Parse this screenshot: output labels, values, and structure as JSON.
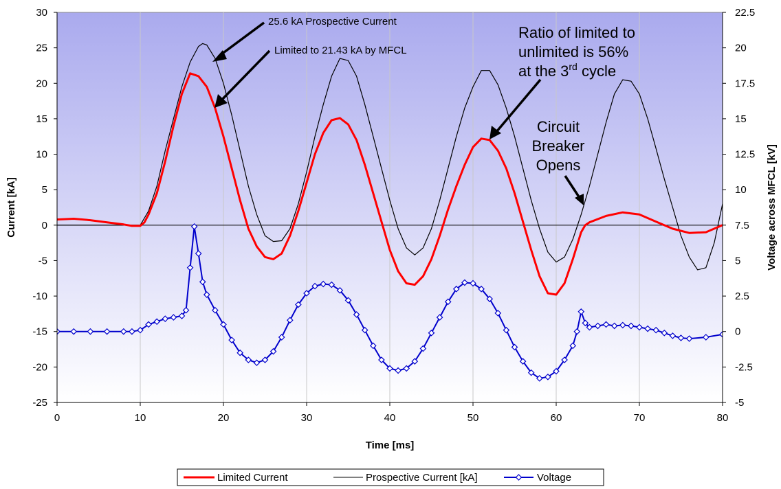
{
  "chart_data": {
    "type": "line",
    "xlabel": "Time [ms]",
    "ylabel": "Current [kA]",
    "y2label": "Voltage across MFCL [kV]",
    "xlim": [
      0,
      80
    ],
    "ylim": [
      -25,
      30
    ],
    "y2lim": [
      -5,
      22.5
    ],
    "xticks": [
      0,
      10,
      20,
      30,
      40,
      50,
      60,
      70,
      80
    ],
    "yticks": [
      -25,
      -20,
      -15,
      -10,
      -5,
      0,
      5,
      10,
      15,
      20,
      25,
      30
    ],
    "y2ticks": [
      -5,
      -2.5,
      0,
      2.5,
      5,
      7.5,
      10,
      12.5,
      15,
      17.5,
      20,
      22.5
    ],
    "y2tick_labels": [
      "-5",
      "-2.5",
      "0",
      "2.5",
      "5",
      "7.5",
      "10",
      "12.5",
      "15",
      "17.5",
      "20",
      "22.5"
    ],
    "grid": "vertical",
    "background_gradient": [
      "#aaaaee",
      "#ffffff"
    ],
    "legend_placement": "bottom",
    "series": [
      {
        "name": "Limited Current",
        "axis": "left",
        "color": "#ff0000",
        "marker": "none",
        "points": [
          [
            0,
            0.8
          ],
          [
            2,
            0.9
          ],
          [
            4,
            0.7
          ],
          [
            6,
            0.4
          ],
          [
            8,
            0.1
          ],
          [
            9,
            -0.1
          ],
          [
            10,
            -0.1
          ],
          [
            10.5,
            0.4
          ],
          [
            11,
            1.5
          ],
          [
            12,
            4.5
          ],
          [
            13,
            9
          ],
          [
            14,
            14
          ],
          [
            15,
            18.5
          ],
          [
            16,
            21.4
          ],
          [
            17,
            21
          ],
          [
            18,
            19.5
          ],
          [
            19,
            16.5
          ],
          [
            20,
            12.5
          ],
          [
            21,
            8
          ],
          [
            22,
            3.5
          ],
          [
            23,
            -0.5
          ],
          [
            24,
            -3
          ],
          [
            25,
            -4.5
          ],
          [
            26,
            -4.8
          ],
          [
            27,
            -4
          ],
          [
            28,
            -1.5
          ],
          [
            29,
            2
          ],
          [
            30,
            6
          ],
          [
            31,
            10
          ],
          [
            32,
            13
          ],
          [
            33,
            14.8
          ],
          [
            34,
            15.1
          ],
          [
            35,
            14.2
          ],
          [
            36,
            12
          ],
          [
            37,
            8.5
          ],
          [
            38,
            4.5
          ],
          [
            39,
            0.5
          ],
          [
            40,
            -3.5
          ],
          [
            41,
            -6.5
          ],
          [
            42,
            -8.2
          ],
          [
            43,
            -8.4
          ],
          [
            44,
            -7.2
          ],
          [
            45,
            -4.8
          ],
          [
            46,
            -1.5
          ],
          [
            47,
            2.2
          ],
          [
            48,
            5.5
          ],
          [
            49,
            8.5
          ],
          [
            50,
            11
          ],
          [
            51,
            12.2
          ],
          [
            52,
            12
          ],
          [
            53,
            10.5
          ],
          [
            54,
            8
          ],
          [
            55,
            4.5
          ],
          [
            56,
            0.5
          ],
          [
            57,
            -3.5
          ],
          [
            58,
            -7.2
          ],
          [
            59,
            -9.6
          ],
          [
            60,
            -9.8
          ],
          [
            61,
            -8.2
          ],
          [
            62,
            -4.8
          ],
          [
            63,
            -1
          ],
          [
            63.5,
            0
          ],
          [
            64,
            0.4
          ],
          [
            66,
            1.3
          ],
          [
            68,
            1.8
          ],
          [
            70,
            1.5
          ],
          [
            72,
            0.5
          ],
          [
            74,
            -0.5
          ],
          [
            76,
            -1.1
          ],
          [
            78,
            -1
          ],
          [
            80,
            0
          ]
        ]
      },
      {
        "name": "Prospective Current [kA]",
        "axis": "left",
        "color": "#000000",
        "marker": "none",
        "points": [
          [
            0,
            0
          ],
          [
            2,
            0
          ],
          [
            4,
            0
          ],
          [
            6,
            0
          ],
          [
            8,
            0
          ],
          [
            10,
            0
          ],
          [
            11,
            2
          ],
          [
            12,
            5.5
          ],
          [
            13,
            10.5
          ],
          [
            14,
            15
          ],
          [
            15,
            19.5
          ],
          [
            16,
            23
          ],
          [
            17,
            25.2
          ],
          [
            17.5,
            25.6
          ],
          [
            18,
            25.4
          ],
          [
            19,
            23.5
          ],
          [
            20,
            20
          ],
          [
            21,
            15.5
          ],
          [
            22,
            10.5
          ],
          [
            23,
            5.5
          ],
          [
            24,
            1.5
          ],
          [
            25,
            -1.5
          ],
          [
            26,
            -2.3
          ],
          [
            27,
            -2.2
          ],
          [
            28,
            -0.5
          ],
          [
            29,
            3
          ],
          [
            30,
            7.5
          ],
          [
            31,
            12.5
          ],
          [
            32,
            17
          ],
          [
            33,
            21
          ],
          [
            34,
            23.5
          ],
          [
            35,
            23.2
          ],
          [
            36,
            21
          ],
          [
            37,
            17
          ],
          [
            38,
            12.5
          ],
          [
            39,
            8
          ],
          [
            40,
            3.5
          ],
          [
            41,
            -0.5
          ],
          [
            42,
            -3.2
          ],
          [
            43,
            -4.2
          ],
          [
            44,
            -3.2
          ],
          [
            45,
            -0.5
          ],
          [
            46,
            3.5
          ],
          [
            47,
            8
          ],
          [
            48,
            12.5
          ],
          [
            49,
            16.5
          ],
          [
            50,
            19.5
          ],
          [
            51,
            21.8
          ],
          [
            52,
            21.8
          ],
          [
            53,
            19.8
          ],
          [
            54,
            16.5
          ],
          [
            55,
            12.5
          ],
          [
            56,
            8
          ],
          [
            57,
            3.5
          ],
          [
            58,
            -0.5
          ],
          [
            59,
            -3.8
          ],
          [
            60,
            -5.2
          ],
          [
            61,
            -4.5
          ],
          [
            62,
            -2
          ],
          [
            63,
            1.5
          ],
          [
            64,
            5.5
          ],
          [
            65,
            10
          ],
          [
            66,
            14.5
          ],
          [
            67,
            18.5
          ],
          [
            68,
            20.5
          ],
          [
            69,
            20.3
          ],
          [
            70,
            18.5
          ],
          [
            71,
            15
          ],
          [
            72,
            10.8
          ],
          [
            73,
            6.5
          ],
          [
            74,
            2.5
          ],
          [
            75,
            -1.5
          ],
          [
            76,
            -4.5
          ],
          [
            77,
            -6.3
          ],
          [
            78,
            -6
          ],
          [
            79,
            -2.5
          ],
          [
            80,
            3
          ]
        ]
      },
      {
        "name": "Voltage",
        "axis": "right",
        "color": "#0000cc",
        "marker": "diamond",
        "points": [
          [
            0,
            0
          ],
          [
            2,
            0
          ],
          [
            4,
            0
          ],
          [
            6,
            0
          ],
          [
            8,
            0
          ],
          [
            9,
            0
          ],
          [
            10,
            0.1
          ],
          [
            11,
            0.5
          ],
          [
            12,
            0.7
          ],
          [
            13,
            0.9
          ],
          [
            14,
            1.0
          ],
          [
            15,
            1.1
          ],
          [
            15.5,
            1.5
          ],
          [
            16,
            4.5
          ],
          [
            16.5,
            7.4
          ],
          [
            17,
            5.5
          ],
          [
            17.5,
            3.5
          ],
          [
            18,
            2.6
          ],
          [
            19,
            1.5
          ],
          [
            20,
            0.5
          ],
          [
            21,
            -0.6
          ],
          [
            22,
            -1.5
          ],
          [
            23,
            -2
          ],
          [
            24,
            -2.2
          ],
          [
            25,
            -2
          ],
          [
            26,
            -1.4
          ],
          [
            27,
            -0.4
          ],
          [
            28,
            0.8
          ],
          [
            29,
            1.9
          ],
          [
            30,
            2.7
          ],
          [
            31,
            3.2
          ],
          [
            32,
            3.35
          ],
          [
            33,
            3.3
          ],
          [
            34,
            2.9
          ],
          [
            35,
            2.2
          ],
          [
            36,
            1.2
          ],
          [
            37,
            0.1
          ],
          [
            38,
            -1
          ],
          [
            39,
            -2
          ],
          [
            40,
            -2.6
          ],
          [
            41,
            -2.75
          ],
          [
            42,
            -2.6
          ],
          [
            43,
            -2.1
          ],
          [
            44,
            -1.2
          ],
          [
            45,
            -0.1
          ],
          [
            46,
            1
          ],
          [
            47,
            2.1
          ],
          [
            48,
            3
          ],
          [
            49,
            3.45
          ],
          [
            50,
            3.4
          ],
          [
            51,
            3
          ],
          [
            52,
            2.3
          ],
          [
            53,
            1.3
          ],
          [
            54,
            0.1
          ],
          [
            55,
            -1.1
          ],
          [
            56,
            -2.1
          ],
          [
            57,
            -2.9
          ],
          [
            58,
            -3.3
          ],
          [
            59,
            -3.2
          ],
          [
            60,
            -2.8
          ],
          [
            61,
            -2
          ],
          [
            62,
            -1
          ],
          [
            62.5,
            0
          ],
          [
            63,
            1.4
          ],
          [
            63.5,
            0.6
          ],
          [
            64,
            0.3
          ],
          [
            65,
            0.4
          ],
          [
            66,
            0.5
          ],
          [
            67,
            0.4
          ],
          [
            68,
            0.45
          ],
          [
            69,
            0.4
          ],
          [
            70,
            0.3
          ],
          [
            71,
            0.2
          ],
          [
            72,
            0.1
          ],
          [
            73,
            -0.1
          ],
          [
            74,
            -0.3
          ],
          [
            75,
            -0.45
          ],
          [
            76,
            -0.5
          ],
          [
            78,
            -0.4
          ],
          [
            80,
            -0.2
          ]
        ]
      }
    ],
    "annotations": [
      {
        "id": "prospective",
        "text": "25.6 kA Prospective Current",
        "color": "#000000"
      },
      {
        "id": "limited",
        "text": "Limited to 21.43 kA by MFCL",
        "color": "#000000"
      },
      {
        "id": "ratio",
        "lines": [
          "Ratio of limited to",
          "unlimited is 56%"
        ],
        "line3_prefix": "at the 3",
        "line3_sup": "rd",
        "line3_suffix": " cycle",
        "color": "#000000"
      },
      {
        "id": "breaker",
        "lines": [
          "Circuit",
          "Breaker",
          "Opens"
        ],
        "color": "#000000"
      }
    ],
    "legend": [
      {
        "label": "Limited Current",
        "color": "#ff0000",
        "marker": "none",
        "width": 3
      },
      {
        "label": "Prospective Current [kA]",
        "color": "#000000",
        "marker": "none",
        "width": 1
      },
      {
        "label": "Voltage",
        "color": "#0000cc",
        "marker": "diamond",
        "width": 2
      }
    ]
  }
}
